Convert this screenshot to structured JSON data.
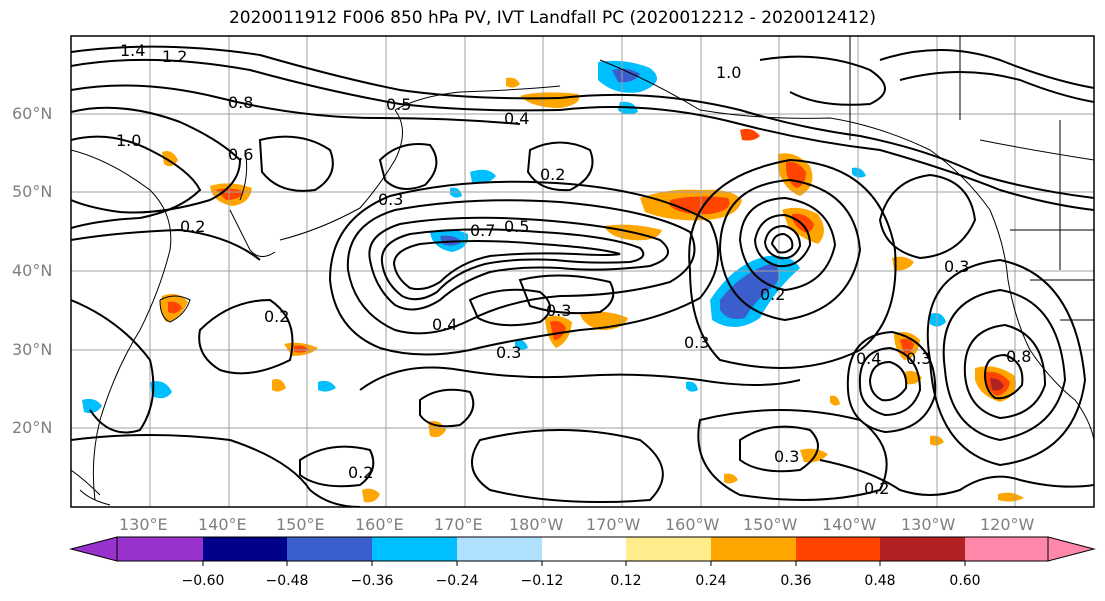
{
  "title": "2020011912 F006 850 hPa PV, IVT Landfall PC (2020012212 - 2020012412)",
  "map": {
    "latitude_labels": [
      "60°N",
      "50°N",
      "40°N",
      "30°N",
      "20°N"
    ],
    "longitude_labels": [
      "130°E",
      "140°E",
      "150°E",
      "160°E",
      "170°E",
      "180°W",
      "170°W",
      "160°W",
      "150°W",
      "140°W",
      "130°W",
      "120°W"
    ],
    "contour_labels": [
      "1.4",
      "1.2",
      "0.8",
      "1.0",
      "0.6",
      "0.5",
      "0.4",
      "0.3",
      "0.2",
      "0.7",
      "0.3",
      "0.3",
      "0.3",
      "0.2",
      "0.2",
      "0.4",
      "0.5",
      "0.3",
      "0.2",
      "0.4",
      "0.3",
      "0.2",
      "0.8",
      "1.0",
      "0.3",
      "0.2"
    ]
  },
  "colorbar": {
    "tick_labels": [
      "−0.60",
      "−0.48",
      "−0.36",
      "−0.24",
      "−0.12",
      "0.12",
      "0.24",
      "0.36",
      "0.48",
      "0.60"
    ],
    "colors": [
      "#9932cc",
      "#00008b",
      "#3a5fcd",
      "#00bfff",
      "#b0e2ff",
      "#ffffff",
      "#ffec8b",
      "#ffa500",
      "#ff4500",
      "#b22222",
      "#ff88aa"
    ]
  },
  "colors": {
    "contour": "#000000",
    "grid": "#a0a0a0",
    "label": "#7f7f7f"
  }
}
